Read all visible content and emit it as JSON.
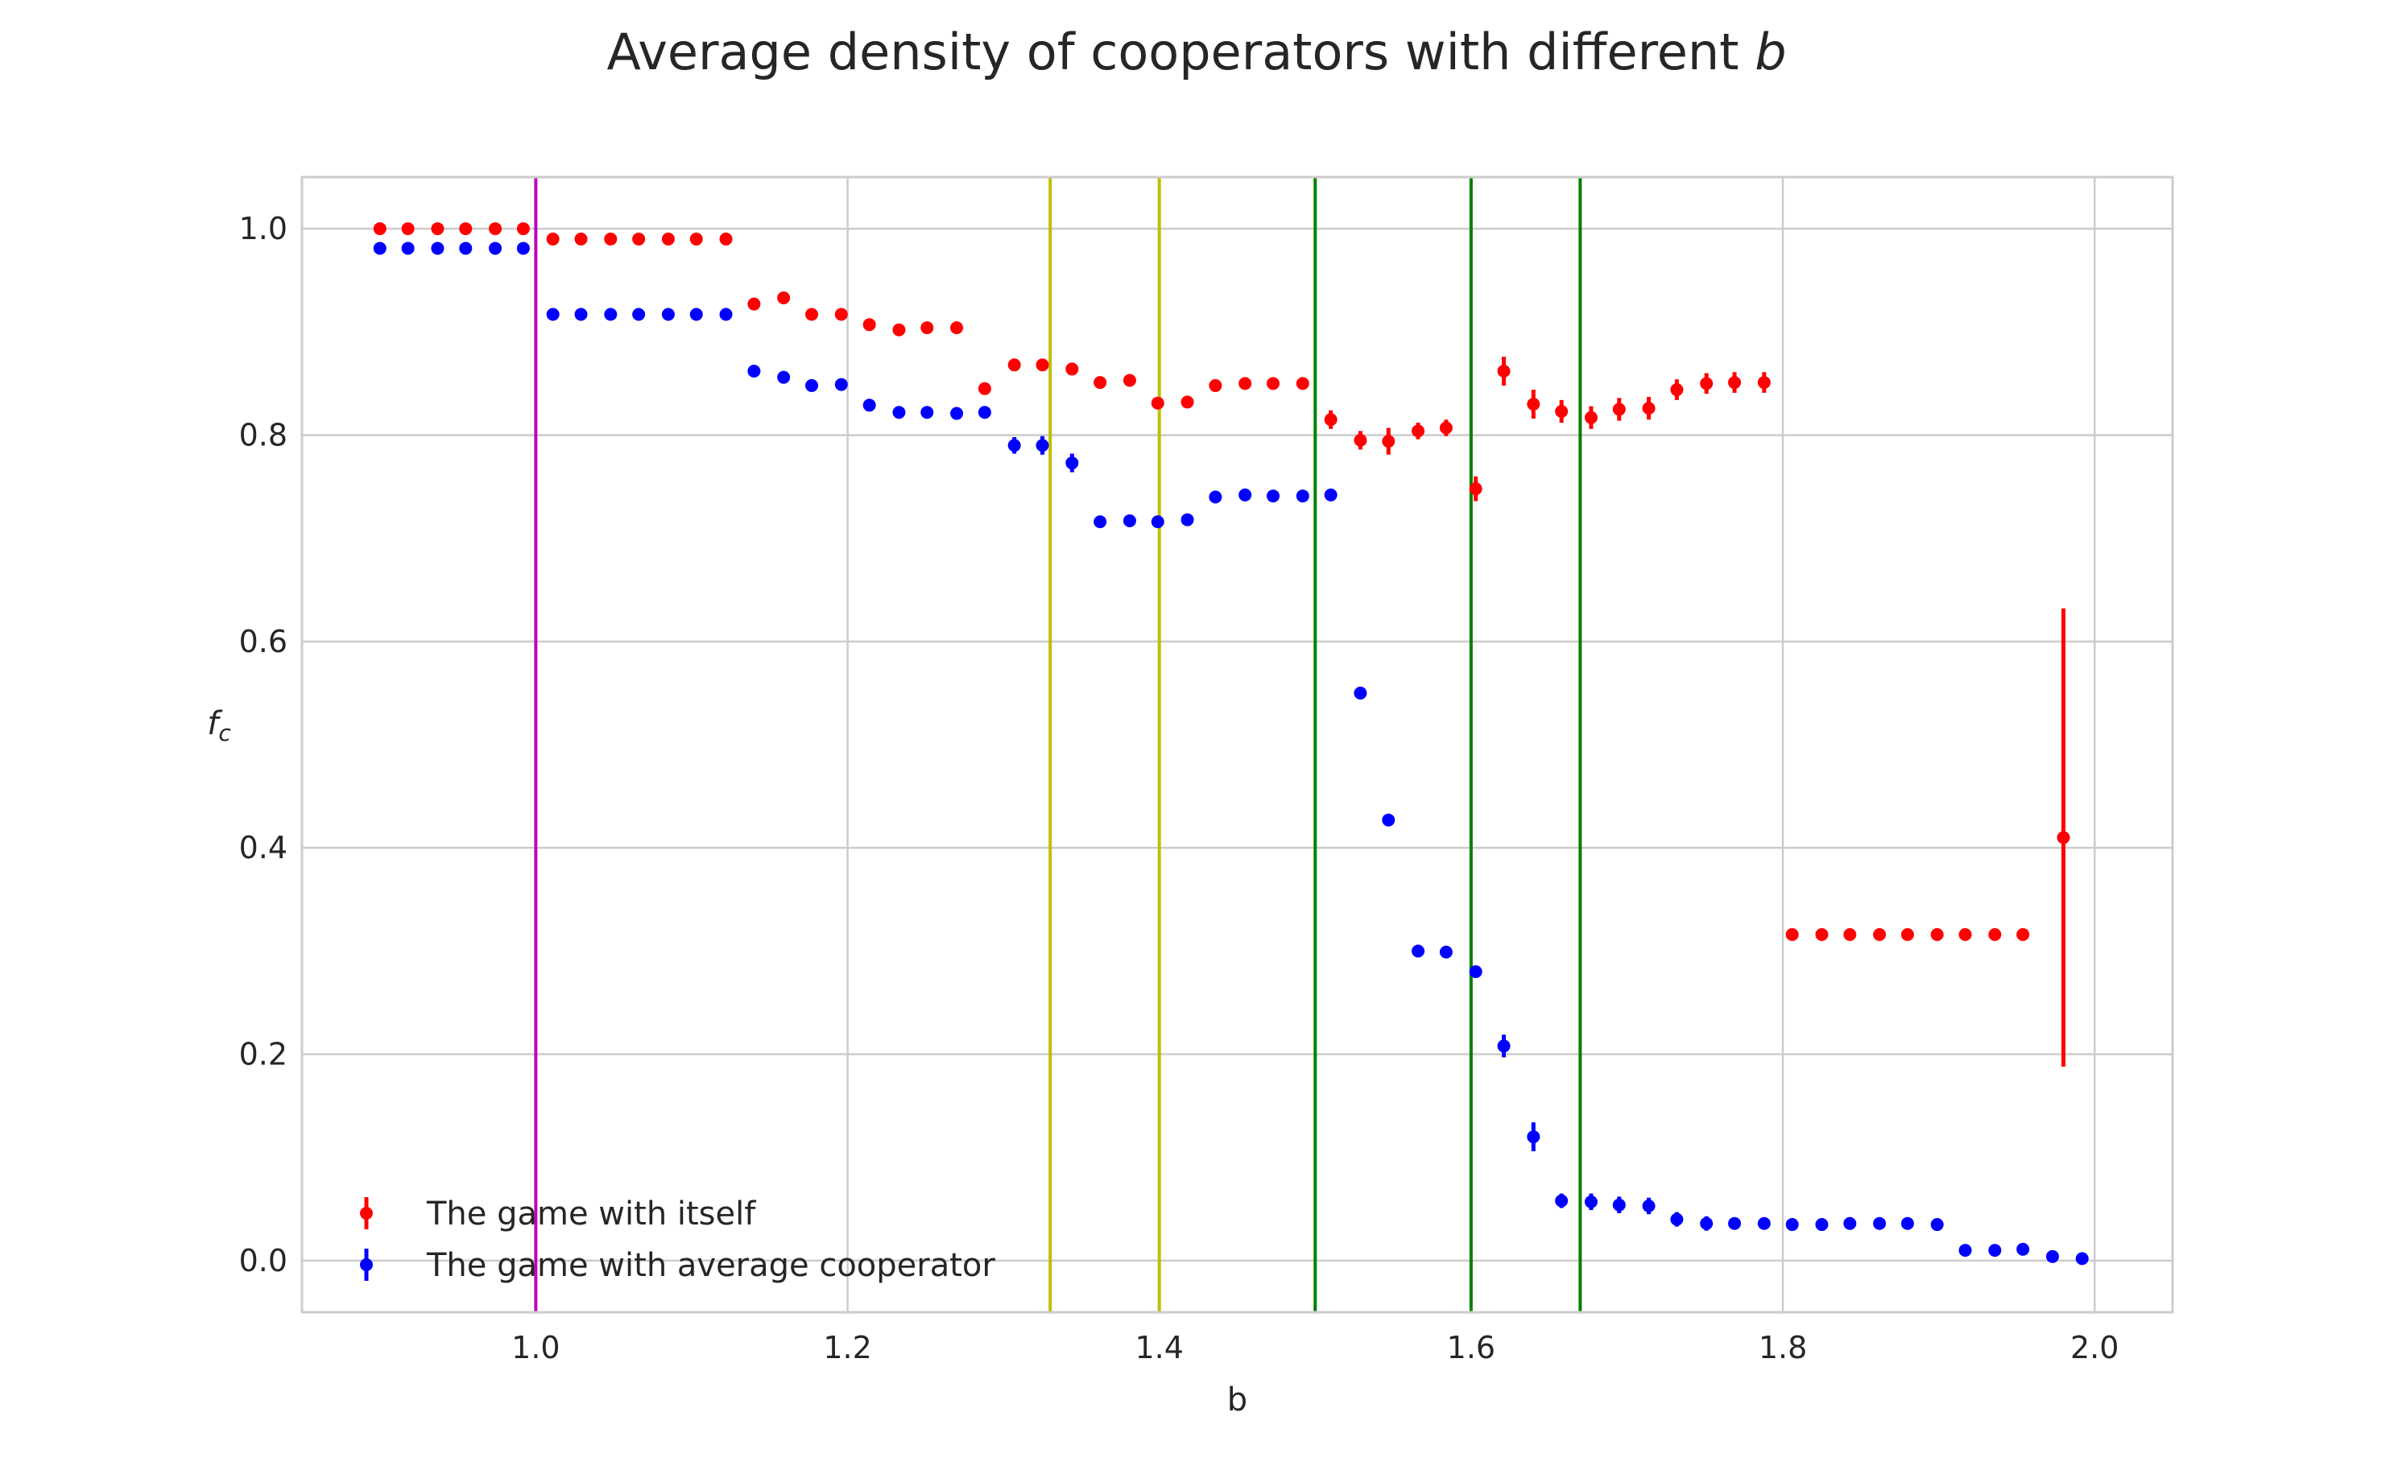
{
  "chart_data": {
    "type": "scatter",
    "title": "Average density of cooperators with different ",
    "title_italic": "b",
    "xlabel": "b",
    "ylabel_main": "f",
    "ylabel_sub": "c",
    "xlim": [
      0.85,
      2.05
    ],
    "ylim": [
      -0.05,
      1.05
    ],
    "x_ticks": [
      1.0,
      1.2,
      1.4,
      1.6,
      1.8,
      2.0
    ],
    "x_tick_labels": [
      "1.0",
      "1.2",
      "1.4",
      "1.6",
      "1.8",
      "2.0"
    ],
    "y_ticks": [
      0.0,
      0.2,
      0.4,
      0.6,
      0.8,
      1.0
    ],
    "y_tick_labels": [
      "0.0",
      "0.2",
      "0.4",
      "0.6",
      "0.8",
      "1.0"
    ],
    "grid": true,
    "legend_position": "lower-left",
    "vertical_lines": [
      {
        "x": 1.0,
        "color": "#bf00bf"
      },
      {
        "x": 1.33,
        "color": "#bfbf00"
      },
      {
        "x": 1.4,
        "color": "#bfbf00"
      },
      {
        "x": 1.5,
        "color": "#008000"
      },
      {
        "x": 1.6,
        "color": "#008000"
      },
      {
        "x": 1.67,
        "color": "#008000"
      }
    ],
    "series": [
      {
        "name": "The game with itself",
        "color": "#ff0000",
        "x": [
          0.9,
          0.918,
          0.937,
          0.955,
          0.974,
          0.992,
          1.011,
          1.029,
          1.048,
          1.066,
          1.085,
          1.103,
          1.122,
          1.14,
          1.159,
          1.177,
          1.196,
          1.214,
          1.233,
          1.251,
          1.27,
          1.288,
          1.307,
          1.325,
          1.344,
          1.362,
          1.381,
          1.399,
          1.418,
          1.436,
          1.455,
          1.473,
          1.492,
          1.51,
          1.529,
          1.547,
          1.566,
          1.584,
          1.603,
          1.621,
          1.64,
          1.658,
          1.677,
          1.695,
          1.714,
          1.732,
          1.751,
          1.769,
          1.788,
          1.806,
          1.825,
          1.843,
          1.862,
          1.88,
          1.899,
          1.917,
          1.936,
          1.954,
          1.98
        ],
        "y": [
          1.0,
          1.0,
          1.0,
          1.0,
          1.0,
          1.0,
          0.99,
          0.99,
          0.99,
          0.99,
          0.99,
          0.99,
          0.99,
          0.927,
          0.933,
          0.917,
          0.917,
          0.907,
          0.902,
          0.904,
          0.904,
          0.845,
          0.868,
          0.868,
          0.864,
          0.851,
          0.853,
          0.831,
          0.832,
          0.848,
          0.85,
          0.85,
          0.85,
          0.815,
          0.795,
          0.794,
          0.804,
          0.807,
          0.748,
          0.862,
          0.83,
          0.823,
          0.817,
          0.825,
          0.826,
          0.844,
          0.85,
          0.851,
          0.851,
          0.316,
          0.316,
          0.316,
          0.316,
          0.316,
          0.316,
          0.316,
          0.316,
          0.316,
          0.41
        ],
        "err": [
          0,
          0,
          0,
          0,
          0,
          0,
          0,
          0,
          0,
          0,
          0,
          0,
          0,
          0,
          0,
          0,
          0,
          0,
          0,
          0,
          0,
          0,
          0,
          0,
          0,
          0,
          0,
          0,
          0,
          0,
          0,
          0,
          0,
          0.009,
          0.009,
          0.013,
          0.008,
          0.008,
          0.012,
          0.014,
          0.014,
          0.011,
          0.011,
          0.011,
          0.011,
          0.01,
          0.01,
          0.01,
          0.01,
          0,
          0,
          0,
          0,
          0,
          0,
          0,
          0,
          0,
          0.222
        ]
      },
      {
        "name": "The game with average cooperator",
        "color": "#0000ff",
        "x": [
          0.9,
          0.918,
          0.937,
          0.955,
          0.974,
          0.992,
          1.011,
          1.029,
          1.048,
          1.066,
          1.085,
          1.103,
          1.122,
          1.14,
          1.159,
          1.177,
          1.196,
          1.214,
          1.233,
          1.251,
          1.27,
          1.288,
          1.307,
          1.325,
          1.344,
          1.362,
          1.381,
          1.399,
          1.418,
          1.436,
          1.455,
          1.473,
          1.492,
          1.51,
          1.529,
          1.547,
          1.566,
          1.584,
          1.603,
          1.621,
          1.64,
          1.658,
          1.677,
          1.695,
          1.714,
          1.732,
          1.751,
          1.769,
          1.788,
          1.806,
          1.825,
          1.843,
          1.862,
          1.88,
          1.899,
          1.917,
          1.936,
          1.954,
          1.973,
          1.992
        ],
        "y": [
          0.981,
          0.981,
          0.981,
          0.981,
          0.981,
          0.981,
          0.917,
          0.917,
          0.917,
          0.917,
          0.917,
          0.917,
          0.917,
          0.862,
          0.856,
          0.848,
          0.849,
          0.829,
          0.822,
          0.822,
          0.821,
          0.822,
          0.79,
          0.79,
          0.773,
          0.716,
          0.717,
          0.716,
          0.718,
          0.74,
          0.742,
          0.741,
          0.741,
          0.742,
          0.55,
          0.427,
          0.3,
          0.299,
          0.28,
          0.208,
          0.12,
          0.058,
          0.057,
          0.054,
          0.053,
          0.04,
          0.036,
          0.036,
          0.036,
          0.035,
          0.035,
          0.036,
          0.036,
          0.036,
          0.035,
          0.01,
          0.01,
          0.011,
          0.004,
          0.002
        ],
        "err": [
          0,
          0,
          0,
          0,
          0,
          0,
          0,
          0,
          0,
          0,
          0,
          0,
          0,
          0,
          0,
          0,
          0,
          0,
          0,
          0,
          0,
          0,
          0.008,
          0.009,
          0.009,
          0,
          0,
          0,
          0,
          0,
          0,
          0,
          0,
          0,
          0,
          0,
          0,
          0,
          0,
          0.011,
          0.014,
          0.007,
          0.008,
          0.008,
          0.008,
          0.007,
          0.007,
          0.006,
          0.006,
          0.006,
          0.006,
          0.006,
          0.006,
          0.006,
          0.006,
          0,
          0,
          0,
          0,
          0.004
        ]
      }
    ]
  }
}
